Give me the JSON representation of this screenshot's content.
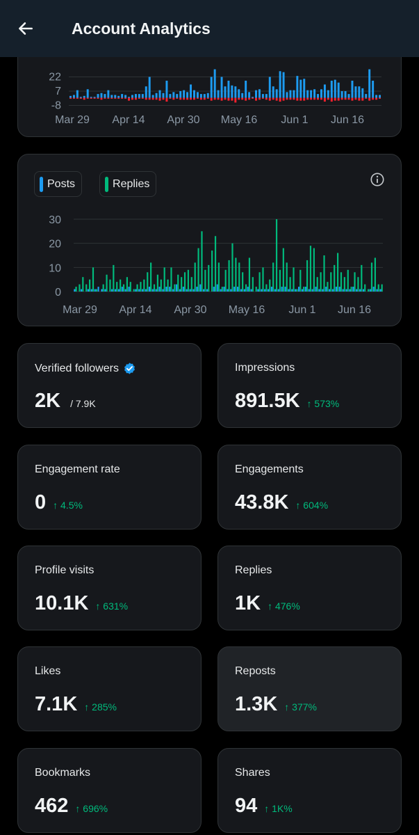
{
  "header": {
    "title": "Account Analytics",
    "back_icon": "arrow-left-icon"
  },
  "colors": {
    "posts": "#1d9bf0",
    "replies": "#00ba7c",
    "negative": "#f4212e",
    "positive_change": "#00ba7c",
    "card_bg": "#16181c",
    "border": "#2f3336"
  },
  "chart_top": {
    "type": "bar",
    "y_ticks": [
      "22",
      "7",
      "-8"
    ],
    "x_ticks": [
      "Mar 29",
      "Apr 14",
      "Apr 30",
      "May 16",
      "Jun 1",
      "Jun 16"
    ],
    "ylim": [
      -8,
      22
    ],
    "positive": [
      2,
      3,
      8,
      1,
      2,
      9,
      1,
      1,
      4,
      5,
      4,
      8,
      3,
      3,
      2,
      4,
      3,
      1,
      3,
      4,
      4,
      4,
      12,
      22,
      3,
      5,
      8,
      5,
      18,
      4,
      6,
      4,
      7,
      8,
      6,
      14,
      8,
      6,
      4,
      4,
      5,
      22,
      30,
      8,
      22,
      12,
      18,
      13,
      12,
      9,
      5,
      18,
      6,
      1,
      8,
      9,
      4,
      4,
      22,
      12,
      9,
      28,
      27,
      6,
      8,
      8,
      23,
      19,
      20,
      8,
      8,
      9,
      4,
      9,
      14,
      8,
      18,
      19,
      16,
      7,
      7,
      4,
      18,
      12,
      12,
      10,
      4,
      30,
      18,
      3,
      3
    ],
    "negative": [
      1,
      1,
      1,
      1,
      2,
      1,
      1,
      1,
      1,
      2,
      1,
      1,
      1,
      1,
      1,
      1,
      1,
      3,
      2,
      2,
      1,
      1,
      2,
      2,
      2,
      2,
      3,
      2,
      4,
      1,
      2,
      1,
      2,
      2,
      2,
      2,
      2,
      1,
      2,
      2,
      1,
      3,
      2,
      2,
      3,
      2,
      3,
      3,
      5,
      2,
      2,
      3,
      2,
      1,
      3,
      2,
      1,
      2,
      3,
      2,
      3,
      4,
      3,
      2,
      2,
      2,
      3,
      3,
      3,
      2,
      2,
      2,
      2,
      2,
      4,
      2,
      4,
      3,
      3,
      2,
      2,
      2,
      3,
      2,
      3,
      3,
      1,
      3,
      2,
      2,
      1
    ]
  },
  "chart_bottom": {
    "type": "bar",
    "legend": [
      {
        "name": "Posts"
      },
      {
        "name": "Replies"
      }
    ],
    "y_ticks": [
      "30",
      "20",
      "10",
      "0"
    ],
    "x_ticks": [
      "Mar 29",
      "Apr 14",
      "Apr 30",
      "May 16",
      "Jun 1",
      "Jun 16"
    ],
    "ylim": [
      0,
      30
    ],
    "posts": [
      1,
      0,
      1,
      0,
      1,
      1,
      1,
      2,
      1,
      1,
      0,
      1,
      1,
      1,
      2,
      1,
      2,
      0,
      1,
      1,
      1,
      1,
      2,
      1,
      1,
      2,
      1,
      2,
      2,
      1,
      3,
      1,
      2,
      1,
      1,
      1,
      2,
      3,
      1,
      1,
      0,
      2,
      3,
      1,
      2,
      1,
      1,
      2,
      2,
      1,
      1,
      2,
      1,
      0,
      1,
      1,
      1,
      1,
      2,
      1,
      1,
      2,
      2,
      1,
      1,
      1,
      2,
      1,
      2,
      1,
      1,
      2,
      1,
      1,
      2,
      1,
      1,
      2,
      2,
      1,
      1,
      1,
      2,
      1,
      1,
      1,
      0,
      1,
      2,
      1,
      1
    ],
    "replies": [
      2,
      3,
      6,
      3,
      5,
      10,
      1,
      0,
      3,
      7,
      5,
      11,
      4,
      5,
      3,
      6,
      4,
      1,
      3,
      4,
      5,
      8,
      12,
      3,
      7,
      5,
      10,
      5,
      10,
      3,
      7,
      6,
      8,
      9,
      6,
      12,
      18,
      25,
      9,
      11,
      17,
      23,
      12,
      2,
      9,
      13,
      20,
      14,
      12,
      8,
      3,
      14,
      6,
      2,
      8,
      10,
      3,
      5,
      12,
      30,
      9,
      18,
      12,
      6,
      10,
      1,
      9,
      2,
      13,
      19,
      18,
      6,
      8,
      15,
      4,
      8,
      11,
      16,
      8,
      6,
      9,
      2,
      8,
      6,
      11,
      3,
      1,
      12,
      14,
      3,
      3
    ]
  },
  "stats": [
    {
      "label": "Verified followers",
      "value": "2K",
      "sub": "/ 7.9K",
      "icon": "verified-badge-icon"
    },
    {
      "label": "Impressions",
      "value": "891.5K",
      "change": "↑ 573%"
    },
    {
      "label": "Engagement rate",
      "value": "0",
      "change": "↑ 4.5%"
    },
    {
      "label": "Engagements",
      "value": "43.8K",
      "change": "↑ 604%"
    },
    {
      "label": "Profile visits",
      "value": "10.1K",
      "change": "↑ 631%"
    },
    {
      "label": "Replies",
      "value": "1K",
      "change": "↑ 476%"
    },
    {
      "label": "Likes",
      "value": "7.1K",
      "change": "↑ 285%"
    },
    {
      "label": "Reposts",
      "value": "1.3K",
      "change": "↑ 377%"
    },
    {
      "label": "Bookmarks",
      "value": "462",
      "change": "↑ 696%"
    },
    {
      "label": "Shares",
      "value": "94",
      "change": "↑ 1K%"
    }
  ]
}
